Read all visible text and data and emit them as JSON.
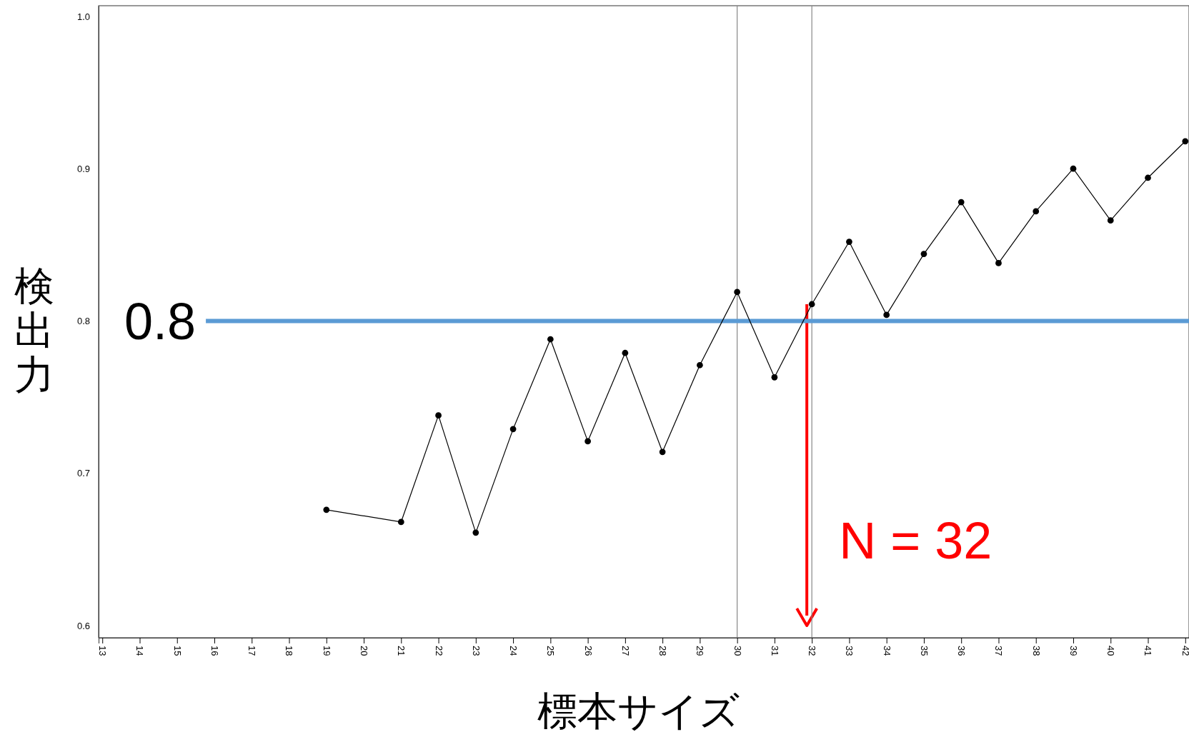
{
  "chart_data": {
    "type": "line",
    "xlabel": "標本サイズ",
    "ylabel": "検出力",
    "x": [
      19,
      21,
      22,
      23,
      24,
      25,
      26,
      27,
      28,
      29,
      30,
      31,
      32,
      33,
      34,
      35,
      36,
      37,
      38,
      39,
      40,
      41,
      42
    ],
    "series": [
      {
        "color": "#000000",
        "values": [
          0.676,
          0.668,
          0.738,
          0.661,
          0.729,
          0.788,
          0.721,
          0.779,
          0.714,
          0.771,
          0.819,
          0.763,
          0.811,
          0.852,
          0.804,
          0.844,
          0.878,
          0.838,
          0.872,
          0.9,
          0.866,
          0.894,
          0.918
        ]
      }
    ],
    "xlim": [
      12.9,
      42.1
    ],
    "ylim": [
      0.592,
      1.007
    ],
    "xticks": [
      13,
      14,
      15,
      16,
      17,
      18,
      19,
      20,
      21,
      22,
      23,
      24,
      25,
      26,
      27,
      28,
      29,
      30,
      31,
      32,
      33,
      34,
      35,
      36,
      37,
      38,
      39,
      40,
      41,
      42
    ],
    "yticks": [
      {
        "value": 0.6,
        "label": "0.6"
      },
      {
        "value": 0.7,
        "label": "0.7"
      },
      {
        "value": 0.8,
        "label": "0.8"
      },
      {
        "value": 0.9,
        "label": "0.9"
      },
      {
        "value": 1,
        "label": "1.0"
      }
    ],
    "ref_lines": [
      {
        "axis": "x",
        "value": 30,
        "color": "#888888"
      },
      {
        "axis": "x",
        "value": 32,
        "color": "#888888"
      },
      {
        "axis": "y",
        "value": 0.8,
        "label": "0.8",
        "color": "#5b9bd5"
      }
    ],
    "annotations": [
      {
        "text": "N = 32",
        "x": 32,
        "y": 0.6
      }
    ],
    "marker": "circle",
    "line_style": "solid",
    "grid": false
  }
}
